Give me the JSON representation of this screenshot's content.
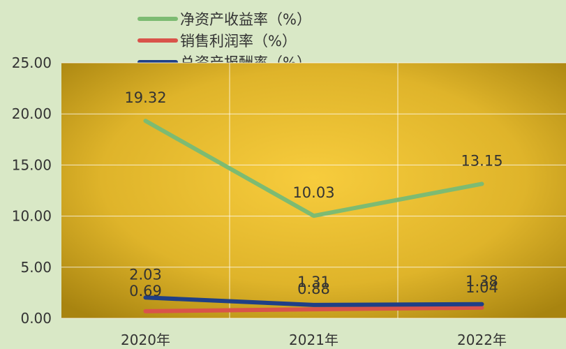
{
  "chart_data": {
    "type": "line",
    "categories": [
      "2020年",
      "2021年",
      "2022年"
    ],
    "series": [
      {
        "name": "净资产收益率（%）",
        "values": [
          19.32,
          10.03,
          13.15
        ],
        "color": "#7dbb72"
      },
      {
        "name": "销售利润率（%）",
        "values": [
          0.69,
          0.88,
          1.04
        ],
        "color": "#d9534a"
      },
      {
        "name": "总资产报酬率（%）",
        "values": [
          2.03,
          1.31,
          1.38
        ],
        "color": "#1f3f86"
      }
    ],
    "y_ticks": [
      "0.00",
      "5.00",
      "10.00",
      "15.00",
      "20.00",
      "25.00"
    ],
    "ylim": [
      0,
      25
    ],
    "grid": true,
    "legend_position": "top-center",
    "colors": {
      "page_background": "#d9e8c6",
      "plot_center": "#f7cc3d",
      "plot_edge": "#a88410"
    }
  }
}
